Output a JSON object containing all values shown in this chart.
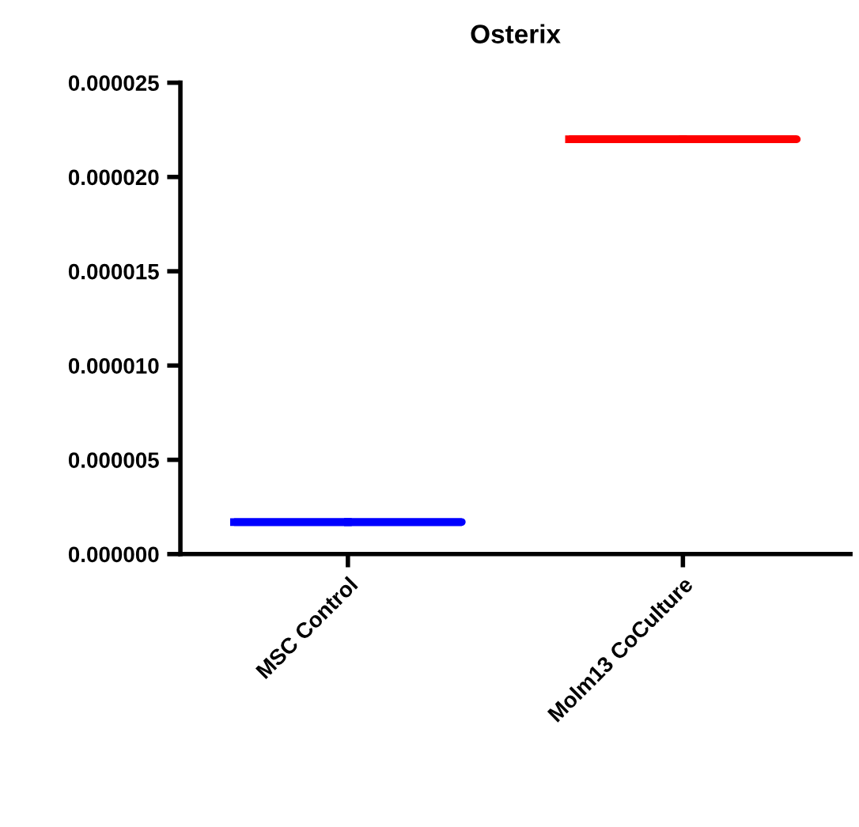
{
  "chart_data": {
    "type": "box",
    "title": "Osterix",
    "categories": [
      "MSC Control",
      "Molm13 CoCulture"
    ],
    "boxes": [
      {
        "low": 1.7e-06,
        "q1": 1.7e-06,
        "median": 1.7e-06,
        "q3": 1.7e-06,
        "high": 1.7e-06
      },
      {
        "low": 2.2e-05,
        "q1": 2.2e-05,
        "median": 2.2e-05,
        "q3": 2.2e-05,
        "high": 2.2e-05
      }
    ],
    "colors": [
      "#0000ff",
      "#ff0000"
    ],
    "ylim": [
      0,
      2.5e-05
    ],
    "yticks": [
      {
        "value": 0,
        "label": "0.000000"
      },
      {
        "value": 5e-06,
        "label": "0.000005"
      },
      {
        "value": 1e-05,
        "label": "0.000010"
      },
      {
        "value": 1.5e-05,
        "label": "0.000015"
      },
      {
        "value": 2e-05,
        "label": "0.000020"
      },
      {
        "value": 2.5e-05,
        "label": "0.000025"
      }
    ],
    "grid": false
  }
}
